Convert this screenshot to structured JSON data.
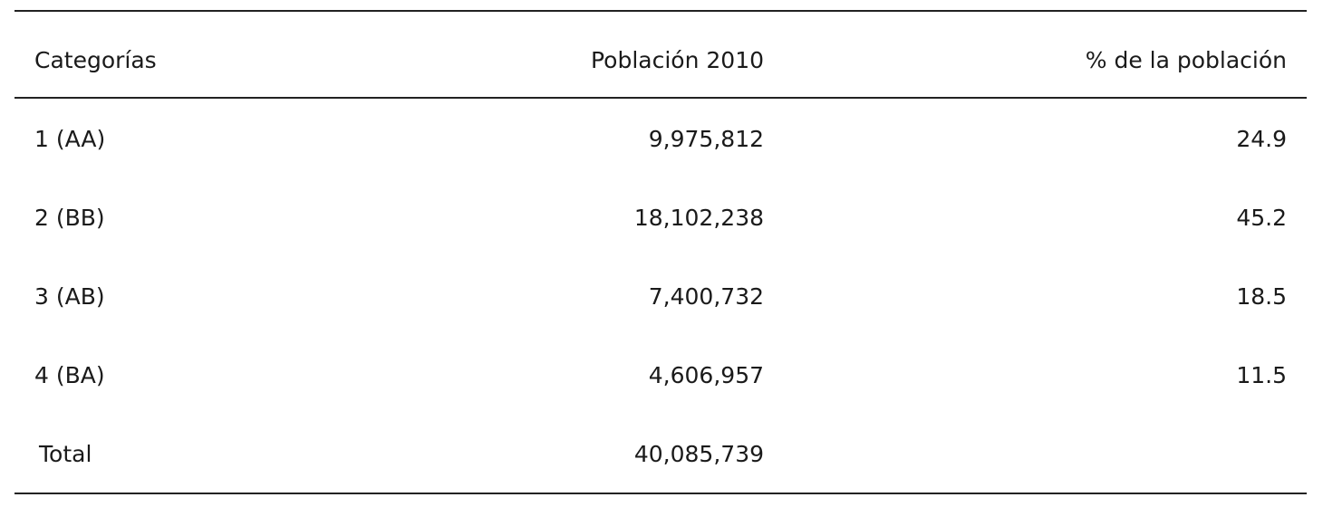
{
  "table": {
    "headers": [
      "Categorías",
      "Población 2010",
      "% de la población"
    ],
    "rows": [
      [
        "1 (AA)",
        "9,975,812",
        "24.9"
      ],
      [
        "2 (BB)",
        "18,102,238",
        "45.2"
      ],
      [
        "3 (AB)",
        "7,400,732",
        "18.5"
      ],
      [
        "4 (BA)",
        "4,606,957",
        "11.5"
      ],
      [
        "Total",
        "40,085,739"
      ]
    ]
  }
}
